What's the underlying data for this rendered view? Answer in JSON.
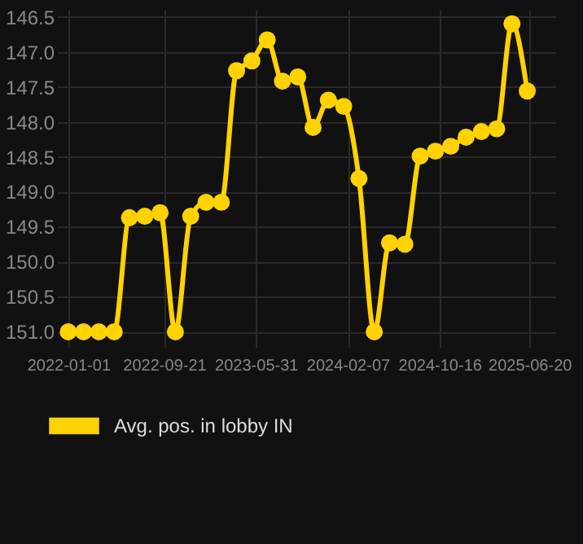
{
  "chart_data": {
    "type": "line",
    "x": [
      "2022-01-01",
      "2022-02-12",
      "2022-03-26",
      "2022-05-07",
      "2022-06-18",
      "2022-07-30",
      "2022-09-10",
      "2022-10-22",
      "2022-12-03",
      "2023-01-14",
      "2023-02-25",
      "2023-04-08",
      "2023-05-20",
      "2023-07-01",
      "2023-08-12",
      "2023-09-23",
      "2023-11-04",
      "2023-12-16",
      "2024-01-27",
      "2024-03-09",
      "2024-04-20",
      "2024-06-01",
      "2024-07-13",
      "2024-08-24",
      "2024-10-05",
      "2024-11-16",
      "2024-12-28",
      "2025-02-08",
      "2025-03-22",
      "2025-05-03",
      "2025-06-14"
    ],
    "series": [
      {
        "name": "Avg. pos. in lobby IN",
        "color": "#ffd200",
        "values": [
          151.0,
          151.0,
          151.0,
          151.0,
          149.37,
          149.35,
          149.3,
          151.0,
          149.35,
          149.15,
          149.15,
          147.27,
          147.13,
          146.83,
          147.42,
          147.36,
          148.08,
          147.69,
          147.78,
          148.81,
          151.0,
          149.73,
          149.75,
          148.49,
          148.42,
          148.35,
          148.22,
          148.14,
          148.1,
          146.6,
          147.56
        ]
      }
    ],
    "ylim": [
      151.1,
      146.4
    ],
    "yticks": [
      {
        "value": 146.5,
        "label": "146.5"
      },
      {
        "value": 147,
        "label": "147.0"
      },
      {
        "value": 147.5,
        "label": "147.5"
      },
      {
        "value": 148,
        "label": "148.0"
      },
      {
        "value": 148.5,
        "label": "148.5"
      },
      {
        "value": 149,
        "label": "149.0"
      },
      {
        "value": 149.5,
        "label": "149.5"
      },
      {
        "value": 150,
        "label": "150.0"
      },
      {
        "value": 150.5,
        "label": "150.5"
      },
      {
        "value": 151,
        "label": "151.0"
      }
    ],
    "xlim": [
      "2021-12-01",
      "2025-08-30"
    ],
    "xticks": [
      "2022-01-01",
      "2022-09-21",
      "2023-05-31",
      "2024-02-07",
      "2024-10-16",
      "2025-06-20"
    ],
    "grid": true,
    "legend": "bottom",
    "marker": "circle",
    "line_style": "solid"
  }
}
